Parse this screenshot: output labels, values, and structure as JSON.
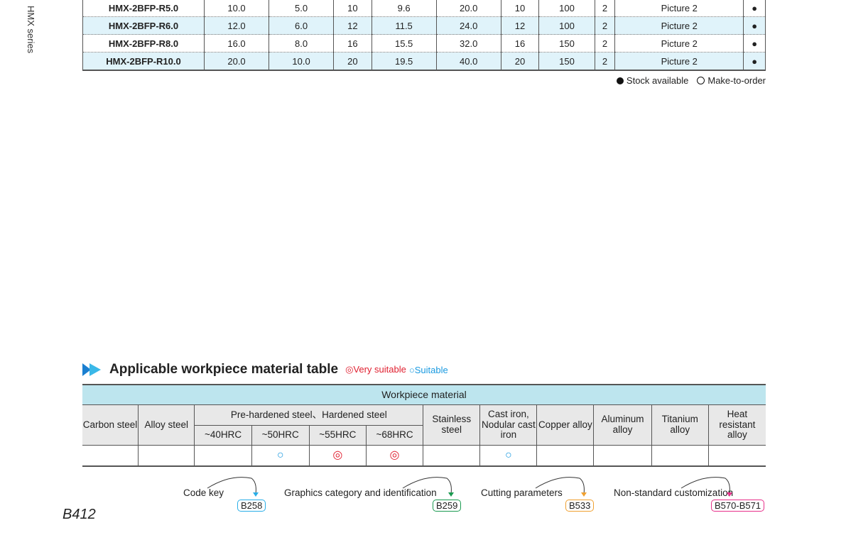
{
  "side_label": "HMX series",
  "spec_rows": [
    [
      "HMX-2BFP-R5.0",
      "10.0",
      "5.0",
      "10",
      "9.6",
      "20.0",
      "10",
      "100",
      "2",
      "Picture 2",
      "●"
    ],
    [
      "HMX-2BFP-R6.0",
      "12.0",
      "6.0",
      "12",
      "11.5",
      "24.0",
      "12",
      "100",
      "2",
      "Picture 2",
      "●"
    ],
    [
      "HMX-2BFP-R8.0",
      "16.0",
      "8.0",
      "16",
      "15.5",
      "32.0",
      "16",
      "150",
      "2",
      "Picture 2",
      "●"
    ],
    [
      "HMX-2BFP-R10.0",
      "20.0",
      "10.0",
      "20",
      "19.5",
      "40.0",
      "20",
      "150",
      "2",
      "Picture 2",
      "●"
    ]
  ],
  "legend": {
    "stock": "Stock available",
    "order": "Make-to-order"
  },
  "section": {
    "title": "Applicable workpiece material table",
    "very": "◎Very suitable",
    "suit": "○Suitable"
  },
  "material": {
    "header": "Workpiece material",
    "cols": [
      "Carbon steel",
      "Alloy steel",
      "Pre-hardened steel、Hardened steel",
      "Stainless steel",
      "Cast iron, Nodular cast iron",
      "Copper alloy",
      "Aluminum alloy",
      "Titanium alloy",
      "Heat resistant alloy"
    ],
    "sub": [
      "~40HRC",
      "~50HRC",
      "~55HRC",
      "~68HRC"
    ],
    "ratings": [
      "",
      "",
      "",
      "○",
      "◎",
      "◎",
      "",
      "○",
      "",
      "",
      "",
      ""
    ]
  },
  "links": [
    {
      "label": "Code key",
      "page": "B258",
      "color": "#29aee8"
    },
    {
      "label": "Graphics category and identification",
      "page": "B259",
      "color": "#1a9a50"
    },
    {
      "label": "Cutting parameters",
      "page": "B533",
      "color": "#f0a030"
    },
    {
      "label": "Non-standard customization",
      "page": "B570-B571",
      "color": "#e8308a"
    }
  ],
  "page_number": "B412"
}
